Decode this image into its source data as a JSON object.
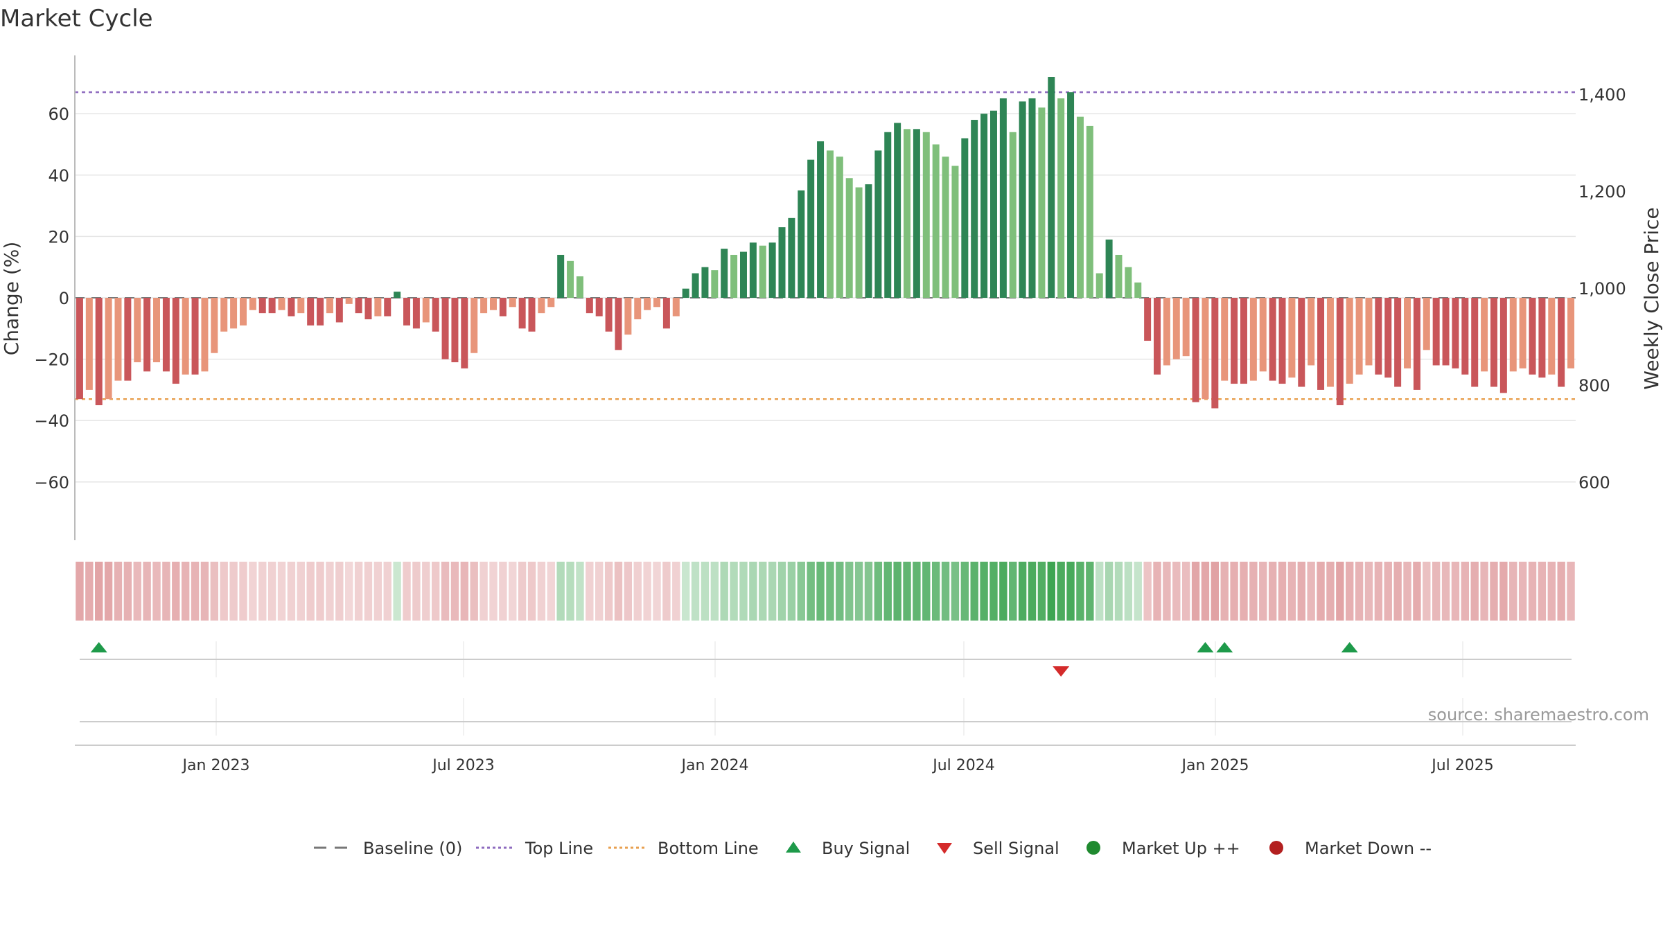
{
  "chart_data": {
    "type": "bar",
    "title": "Market Cycle",
    "ylabel_left": "Change (%)",
    "ylabel_right": "Weekly Close Price",
    "source": "source: sharemaestro.com",
    "y_left_ticks": [
      60,
      40,
      20,
      0,
      -20,
      -40,
      -60
    ],
    "y_left_range": [
      -79,
      79
    ],
    "y_right_ticks": [
      "1,400",
      "1,200",
      "1,000",
      "800",
      "600"
    ],
    "x_ticks": [
      "Jan 2023",
      "Jul 2023",
      "Jan 2024",
      "Jul 2024",
      "Jan 2025",
      "Jul 2025"
    ],
    "top_line": 67,
    "bottom_line": -33,
    "values": [
      -33,
      -30,
      -35,
      -33,
      -27,
      -27,
      -21,
      -24,
      -21,
      -24,
      -28,
      -25,
      -25,
      -24,
      -18,
      -11,
      -10,
      -9,
      -4,
      -5,
      -5,
      -4,
      -6,
      -5,
      -9,
      -9,
      -5,
      -8,
      -2,
      -5,
      -7,
      -6,
      -6,
      2,
      -9,
      -10,
      -8,
      -11,
      -20,
      -21,
      -23,
      -18,
      -5,
      -4,
      -6,
      -3,
      -10,
      -11,
      -5,
      -3,
      14,
      12,
      7,
      -5,
      -6,
      -11,
      -17,
      -12,
      -7,
      -4,
      -3,
      -10,
      -6,
      3,
      8,
      10,
      9,
      16,
      14,
      15,
      18,
      17,
      18,
      23,
      26,
      35,
      45,
      51,
      48,
      46,
      39,
      36,
      37,
      48,
      54,
      57,
      55,
      55,
      54,
      50,
      46,
      43,
      52,
      58,
      60,
      61,
      65,
      54,
      64,
      65,
      62,
      72,
      65,
      67,
      59,
      56,
      8,
      19,
      14,
      10,
      5,
      -14,
      -25,
      -22,
      -20,
      -19,
      -34,
      -33,
      -36,
      -27,
      -28,
      -28,
      -27,
      -24,
      -27,
      -28,
      -26,
      -29,
      -22,
      -30,
      -29,
      -35,
      -28,
      -25,
      -22,
      -25,
      -26,
      -29,
      -23,
      -30,
      -17,
      -22,
      -22,
      -23,
      -25,
      -29,
      -24,
      -29,
      -31,
      -24,
      -23,
      -25,
      -26,
      -25,
      -29,
      -23
    ],
    "buy_signals": [
      2,
      117,
      119,
      132
    ],
    "sell_signals": [
      102
    ],
    "legend": [
      "Baseline (0)",
      "Top Line",
      "Bottom Line",
      "Buy Signal",
      "Sell Signal",
      "Market Up ++",
      "Market Down --"
    ],
    "colors": {
      "dark_green": "#2e8555",
      "light_green": "#7fbf7b",
      "dark_red": "#c9565a",
      "light_red": "#e8957a",
      "top_line": "#8e6bbf",
      "bottom_line": "#e8a050",
      "buy": "#1e9a4a",
      "sell": "#d42b2b",
      "market_up": "#1f8a2f",
      "market_down": "#b32020",
      "baseline": "#777777"
    }
  }
}
